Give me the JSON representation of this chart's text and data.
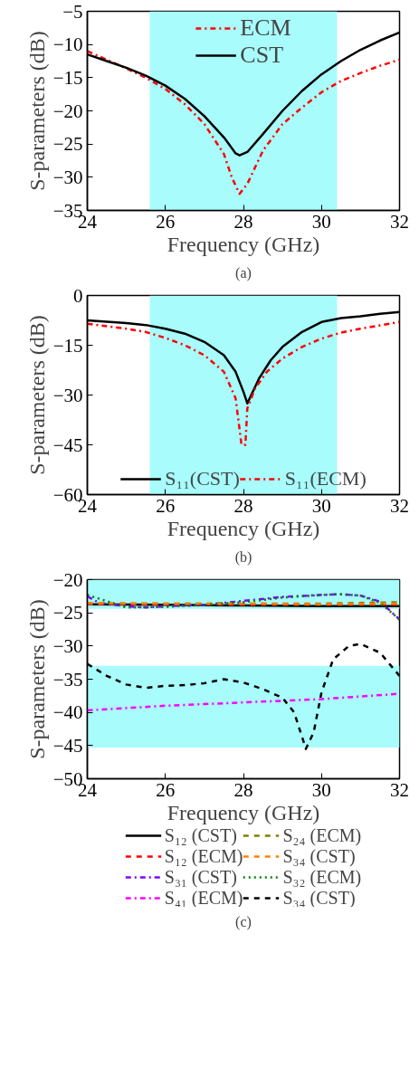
{
  "chart_data": [
    {
      "type": "line",
      "xlabel": "Frequency (GHz)",
      "ylabel": "S-parameters (dB)",
      "annotations": [
        "(a)"
      ],
      "xlim": [
        24,
        32
      ],
      "xticks": [
        24,
        26,
        28,
        30,
        32
      ],
      "ylim": [
        -35,
        -5
      ],
      "yticks": [
        -35,
        -30,
        -25,
        -20,
        -15,
        -10,
        -5
      ],
      "legend": "top",
      "grid": false,
      "bands": [
        {
          "axis": "x",
          "from": 25.6,
          "to": 30.4,
          "color": "#a8fcfc"
        }
      ],
      "series": [
        {
          "name": "ECM",
          "color": "#ff0000",
          "line_style": "dashdot",
          "x": [
            24,
            24.5,
            25,
            25.5,
            26,
            26.5,
            27,
            27.5,
            27.7,
            27.9,
            28.1,
            28.3,
            28.5,
            29,
            29.5,
            30,
            30.5,
            31,
            31.5,
            32
          ],
          "values": [
            -11,
            -12.3,
            -13.6,
            -15,
            -16.7,
            -19,
            -22,
            -26.5,
            -30,
            -32.5,
            -31,
            -28.5,
            -26,
            -22,
            -19.5,
            -17.2,
            -15.5,
            -14.3,
            -13.2,
            -12.3
          ]
        },
        {
          "name": "CST",
          "color": "#000000",
          "line_style": "solid",
          "x": [
            24,
            24.5,
            25,
            25.5,
            26,
            26.5,
            27,
            27.5,
            27.8,
            27.9,
            28.1,
            28.5,
            29,
            29.5,
            30,
            30.5,
            31,
            31.5,
            32
          ],
          "values": [
            -11.5,
            -12.5,
            -13.5,
            -14.7,
            -16.2,
            -18.2,
            -20.8,
            -24,
            -26.4,
            -26.7,
            -26.2,
            -23.5,
            -20,
            -17,
            -14.5,
            -12.5,
            -10.8,
            -9.4,
            -8.2
          ]
        }
      ]
    },
    {
      "type": "line",
      "xlabel": "Frequency (GHz)",
      "ylabel": "S-parameters (dB)",
      "annotations": [
        "(b)"
      ],
      "xlim": [
        24,
        32
      ],
      "xticks": [
        24,
        26,
        28,
        30,
        32
      ],
      "ylim": [
        -60,
        0
      ],
      "yticks": [
        -60,
        -45,
        -30,
        -15,
        0
      ],
      "legend": "bottom",
      "grid": false,
      "bands": [
        {
          "axis": "x",
          "from": 25.6,
          "to": 30.4,
          "color": "#a8fcfc"
        }
      ],
      "series": [
        {
          "name": "S₁₁(CST)",
          "color": "#000000",
          "line_style": "solid",
          "x": [
            24,
            25,
            25.5,
            26,
            26.5,
            27,
            27.5,
            27.8,
            28,
            28.1,
            28.2,
            28.4,
            28.7,
            29,
            29.5,
            30,
            30.5,
            31,
            31.5,
            32
          ],
          "values": [
            -7.5,
            -8.3,
            -8.9,
            -10,
            -11.5,
            -14,
            -18,
            -23,
            -29,
            -32.5,
            -30,
            -25,
            -19.5,
            -15.5,
            -11,
            -8,
            -6.8,
            -6.3,
            -5.5,
            -5
          ]
        },
        {
          "name": "S₁₁(ECM)",
          "color": "#ff0000",
          "line_style": "dashdot",
          "x": [
            24,
            25,
            25.5,
            26,
            26.5,
            27,
            27.5,
            27.8,
            27.95,
            28.05,
            28.1,
            28.3,
            28.6,
            29,
            29.5,
            30,
            30.5,
            31,
            31.5,
            32
          ],
          "values": [
            -8.5,
            -10,
            -11,
            -12.8,
            -15,
            -18,
            -23,
            -31,
            -45,
            -45,
            -34,
            -28,
            -23,
            -19,
            -15.5,
            -13,
            -11.2,
            -10,
            -9,
            -8
          ]
        }
      ]
    },
    {
      "type": "line",
      "xlabel": "Frequency (GHz)",
      "ylabel": "S-parameters (dB)",
      "annotations": [
        "(c)"
      ],
      "xlim": [
        24,
        32
      ],
      "xticks": [
        24,
        26,
        28,
        30,
        32
      ],
      "ylim": [
        -50,
        -20
      ],
      "yticks": [
        -50,
        -45,
        -40,
        -35,
        -30,
        -25,
        -20
      ],
      "legend": "bottom",
      "grid": false,
      "bands": [
        {
          "axis": "y",
          "from": -24.4,
          "to": -20,
          "color": "#a8fcfc"
        },
        {
          "axis": "y",
          "from": -45.3,
          "to": -33,
          "color": "#a8fcfc"
        }
      ],
      "series": [
        {
          "name": "S₁₂ (CST)",
          "color": "#000000",
          "line_style": "solid",
          "x": [
            24,
            26,
            28,
            30,
            32
          ],
          "values": [
            -23.7,
            -23.8,
            -23.9,
            -24,
            -24
          ]
        },
        {
          "name": "S₁₂ (ECM)",
          "color": "#ff0000",
          "line_style": "dashed",
          "x": [
            24,
            26,
            28,
            30,
            32
          ],
          "values": [
            -23.7,
            -23.7,
            -23.8,
            -23.8,
            -23.8
          ]
        },
        {
          "name": "S₃₁ (CST)",
          "color": "#8000ff",
          "line_style": "dashdot",
          "x": [
            24,
            24.3,
            25,
            25.5,
            26,
            27,
            28,
            29,
            30,
            30.5,
            31,
            31.5,
            32
          ],
          "values": [
            -22.5,
            -23.5,
            -24,
            -24.2,
            -24,
            -23.8,
            -23.2,
            -22.6,
            -22.3,
            -22.2,
            -22.4,
            -23.3,
            -26
          ]
        },
        {
          "name": "S₄₁ (ECM)",
          "color": "#ff00ff",
          "line_style": "dashdot",
          "x": [
            24,
            26,
            28,
            30,
            32
          ],
          "values": [
            -39.7,
            -39,
            -38.5,
            -38,
            -37.2
          ]
        },
        {
          "name": "S₂₄ (ECM)",
          "color": "#808000",
          "line_style": "dashed",
          "x": [
            24,
            26,
            28,
            30,
            32
          ],
          "values": [
            -23.6,
            -23.6,
            -23.6,
            -23.6,
            -23.4
          ]
        },
        {
          "name": "S₃₄ (CST)",
          "color": "#ff8000",
          "line_style": "dashed",
          "x": [
            24,
            26,
            28,
            30,
            32
          ],
          "values": [
            -23.5,
            -23.6,
            -23.6,
            -23.7,
            -23.6
          ]
        },
        {
          "name": "S₃₂ (ECM)",
          "color": "#008000",
          "line_style": "dotted",
          "x": [
            24,
            25,
            26,
            27,
            28,
            29,
            30,
            30.5,
            31,
            31.5,
            32
          ],
          "values": [
            -22.3,
            -24.2,
            -24.1,
            -23.8,
            -23.4,
            -22.7,
            -22.3,
            -22.2,
            -22.4,
            -23.5,
            -26
          ]
        },
        {
          "name": "S₃₄ (CST)",
          "color": "#000000",
          "line_style": "dashed",
          "x": [
            24,
            24.5,
            25,
            25.5,
            26,
            26.5,
            27,
            27.5,
            28,
            28.5,
            29,
            29.3,
            29.6,
            29.8,
            30,
            30.3,
            30.7,
            31,
            31.5,
            32
          ],
          "values": [
            -32.7,
            -34.5,
            -35.8,
            -36.3,
            -36,
            -35.9,
            -35.6,
            -35,
            -35.5,
            -36.5,
            -37.8,
            -40,
            -45.5,
            -43,
            -37,
            -32,
            -30,
            -29.7,
            -31,
            -34.5
          ]
        }
      ]
    }
  ]
}
